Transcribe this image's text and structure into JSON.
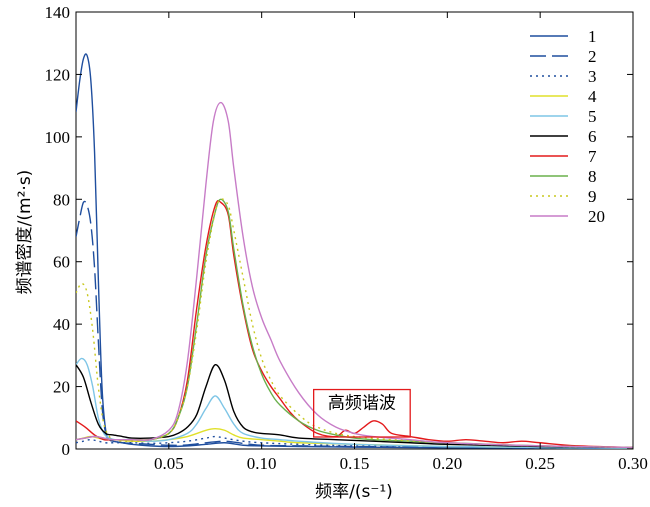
{
  "chart_data": {
    "type": "line",
    "xlabel": "频率/(s⁻¹)",
    "ylabel": "频谱密度/(m²·s)",
    "xlim": [
      0.0,
      0.3
    ],
    "ylim": [
      0,
      140
    ],
    "x_ticks": [
      "0.05",
      "0.10",
      "0.15",
      "0.20",
      "0.25",
      "0.30"
    ],
    "y_ticks": [
      "0",
      "20",
      "40",
      "60",
      "80",
      "100",
      "120",
      "140"
    ],
    "grid": false,
    "legend_position": "top-right",
    "annotation": {
      "text": "高频谐波",
      "x_range": [
        0.128,
        0.18
      ],
      "y_range": [
        0,
        12
      ]
    },
    "series": [
      {
        "name": "1",
        "color": "#1f4e9e",
        "dash": "solid",
        "x": [
          0.0,
          0.002,
          0.004,
          0.006,
          0.008,
          0.01,
          0.012,
          0.014,
          0.016,
          0.018,
          0.02,
          0.025,
          0.03,
          0.04,
          0.05,
          0.06,
          0.07,
          0.08,
          0.09,
          0.1,
          0.12,
          0.15,
          0.2,
          0.25,
          0.3
        ],
        "y": [
          108,
          118,
          125,
          126,
          118,
          95,
          55,
          20,
          6,
          3,
          2.5,
          2,
          1.5,
          1,
          0.8,
          1,
          1.5,
          2,
          1.2,
          1,
          0.8,
          0.6,
          0.4,
          0.3,
          0.2
        ]
      },
      {
        "name": "2",
        "color": "#1f4e9e",
        "dash": "long-dash",
        "x": [
          0.0,
          0.002,
          0.004,
          0.006,
          0.008,
          0.01,
          0.012,
          0.014,
          0.016,
          0.018,
          0.02,
          0.025,
          0.03,
          0.04,
          0.05,
          0.06,
          0.07,
          0.08,
          0.09,
          0.1,
          0.12,
          0.15,
          0.2,
          0.25,
          0.3
        ],
        "y": [
          68,
          74,
          79,
          78,
          72,
          58,
          35,
          14,
          5,
          3,
          2.5,
          2,
          1.8,
          1.5,
          1.2,
          1.3,
          2,
          2.5,
          1.8,
          1.2,
          1,
          0.8,
          0.5,
          0.3,
          0.2
        ]
      },
      {
        "name": "3",
        "color": "#1f4e9e",
        "dash": "dotted",
        "x": [
          0.0,
          0.004,
          0.008,
          0.012,
          0.016,
          0.02,
          0.03,
          0.04,
          0.05,
          0.06,
          0.07,
          0.075,
          0.08,
          0.09,
          0.1,
          0.12,
          0.15,
          0.2,
          0.25,
          0.3
        ],
        "y": [
          2,
          2.5,
          3,
          2.5,
          2,
          2,
          2,
          1.8,
          2,
          2.5,
          3.5,
          4,
          3.5,
          2.5,
          2,
          1.5,
          1,
          0.6,
          0.4,
          0.3
        ]
      },
      {
        "name": "4",
        "color": "#e0e02a",
        "dash": "solid",
        "x": [
          0.0,
          0.004,
          0.008,
          0.012,
          0.016,
          0.02,
          0.03,
          0.04,
          0.05,
          0.06,
          0.07,
          0.075,
          0.08,
          0.085,
          0.09,
          0.1,
          0.11,
          0.12,
          0.15,
          0.2,
          0.25,
          0.3
        ],
        "y": [
          3,
          3.5,
          4,
          3.5,
          3,
          3,
          2.5,
          2.5,
          3,
          4,
          6,
          6.5,
          6,
          4.5,
          3.5,
          3,
          2.5,
          2,
          1.5,
          0.8,
          0.5,
          0.3
        ]
      },
      {
        "name": "5",
        "color": "#7ec5e6",
        "dash": "solid",
        "x": [
          0.0,
          0.003,
          0.006,
          0.009,
          0.012,
          0.015,
          0.018,
          0.021,
          0.025,
          0.03,
          0.04,
          0.05,
          0.06,
          0.065,
          0.07,
          0.075,
          0.08,
          0.085,
          0.09,
          0.1,
          0.11,
          0.12,
          0.15,
          0.2,
          0.25,
          0.3
        ],
        "y": [
          27,
          29,
          27,
          20,
          10,
          5,
          3.5,
          3,
          3,
          3,
          2.5,
          3,
          5,
          8,
          13,
          17,
          13,
          8,
          5,
          3.5,
          3,
          2.5,
          1.5,
          0.8,
          0.5,
          0.3
        ]
      },
      {
        "name": "6",
        "color": "#000000",
        "dash": "solid",
        "x": [
          0.0,
          0.004,
          0.008,
          0.012,
          0.016,
          0.02,
          0.025,
          0.03,
          0.04,
          0.05,
          0.055,
          0.06,
          0.065,
          0.07,
          0.075,
          0.08,
          0.085,
          0.09,
          0.095,
          0.1,
          0.11,
          0.12,
          0.14,
          0.16,
          0.18,
          0.2,
          0.25,
          0.3
        ],
        "y": [
          27,
          23,
          15,
          8,
          5,
          4.5,
          4,
          3.5,
          3.5,
          4,
          5,
          7,
          11,
          20,
          27,
          22,
          12,
          7,
          5.5,
          5,
          4.5,
          3.5,
          3,
          2.5,
          2,
          1.5,
          0.8,
          0.5
        ]
      },
      {
        "name": "7",
        "color": "#e31a1c",
        "dash": "solid",
        "x": [
          0.0,
          0.005,
          0.01,
          0.015,
          0.02,
          0.03,
          0.04,
          0.05,
          0.055,
          0.06,
          0.065,
          0.07,
          0.075,
          0.078,
          0.082,
          0.085,
          0.09,
          0.095,
          0.1,
          0.105,
          0.11,
          0.115,
          0.12,
          0.13,
          0.14,
          0.145,
          0.15,
          0.155,
          0.16,
          0.165,
          0.17,
          0.18,
          0.19,
          0.2,
          0.21,
          0.22,
          0.23,
          0.24,
          0.25,
          0.27,
          0.3
        ],
        "y": [
          9,
          7,
          4.5,
          3,
          3,
          3,
          3,
          5,
          10,
          22,
          45,
          65,
          78,
          79,
          75,
          62,
          45,
          32,
          25,
          20,
          16,
          12,
          9,
          5,
          4,
          6,
          5,
          7,
          9,
          8,
          5,
          4,
          3,
          2.5,
          3,
          2.5,
          2,
          2.5,
          2,
          1,
          0.5
        ]
      },
      {
        "name": "8",
        "color": "#6ab04c",
        "dash": "solid",
        "x": [
          0.0,
          0.005,
          0.01,
          0.015,
          0.02,
          0.03,
          0.04,
          0.05,
          0.055,
          0.06,
          0.065,
          0.07,
          0.075,
          0.078,
          0.082,
          0.085,
          0.09,
          0.095,
          0.1,
          0.105,
          0.11,
          0.12,
          0.13,
          0.14,
          0.15,
          0.16,
          0.18,
          0.2,
          0.25,
          0.3
        ],
        "y": [
          3,
          3.5,
          4,
          3.5,
          3,
          3,
          3,
          5,
          10,
          20,
          40,
          62,
          76,
          80,
          76,
          64,
          46,
          33,
          24,
          18,
          14,
          9,
          6,
          4.5,
          3.5,
          3,
          2.5,
          2,
          1,
          0.5
        ]
      },
      {
        "name": "9",
        "color": "#c8c81e",
        "dash": "dotted",
        "x": [
          0.0,
          0.003,
          0.006,
          0.009,
          0.012,
          0.015,
          0.018,
          0.02,
          0.025,
          0.03,
          0.04,
          0.05,
          0.055,
          0.06,
          0.065,
          0.07,
          0.075,
          0.078,
          0.082,
          0.085,
          0.09,
          0.095,
          0.1,
          0.105,
          0.11,
          0.12,
          0.13,
          0.15,
          0.2,
          0.25,
          0.3
        ],
        "y": [
          50,
          53,
          50,
          38,
          20,
          8,
          4,
          3,
          2.5,
          2.5,
          3,
          5,
          10,
          20,
          38,
          60,
          76,
          80,
          78,
          70,
          55,
          40,
          29,
          22,
          17,
          11,
          7,
          4,
          2,
          1,
          0.5
        ]
      },
      {
        "name": "20",
        "color": "#c77cc7",
        "dash": "solid",
        "x": [
          0.0,
          0.005,
          0.01,
          0.015,
          0.02,
          0.03,
          0.04,
          0.05,
          0.055,
          0.06,
          0.065,
          0.07,
          0.074,
          0.078,
          0.082,
          0.085,
          0.09,
          0.095,
          0.1,
          0.105,
          0.11,
          0.12,
          0.13,
          0.14,
          0.15,
          0.16,
          0.18,
          0.2,
          0.25,
          0.3
        ],
        "y": [
          3,
          3.5,
          4,
          3.5,
          3,
          3,
          3,
          6,
          12,
          28,
          55,
          85,
          105,
          111,
          105,
          90,
          68,
          52,
          42,
          35,
          28,
          18,
          11,
          7,
          5,
          4,
          3,
          2,
          1,
          0.5
        ]
      }
    ]
  }
}
